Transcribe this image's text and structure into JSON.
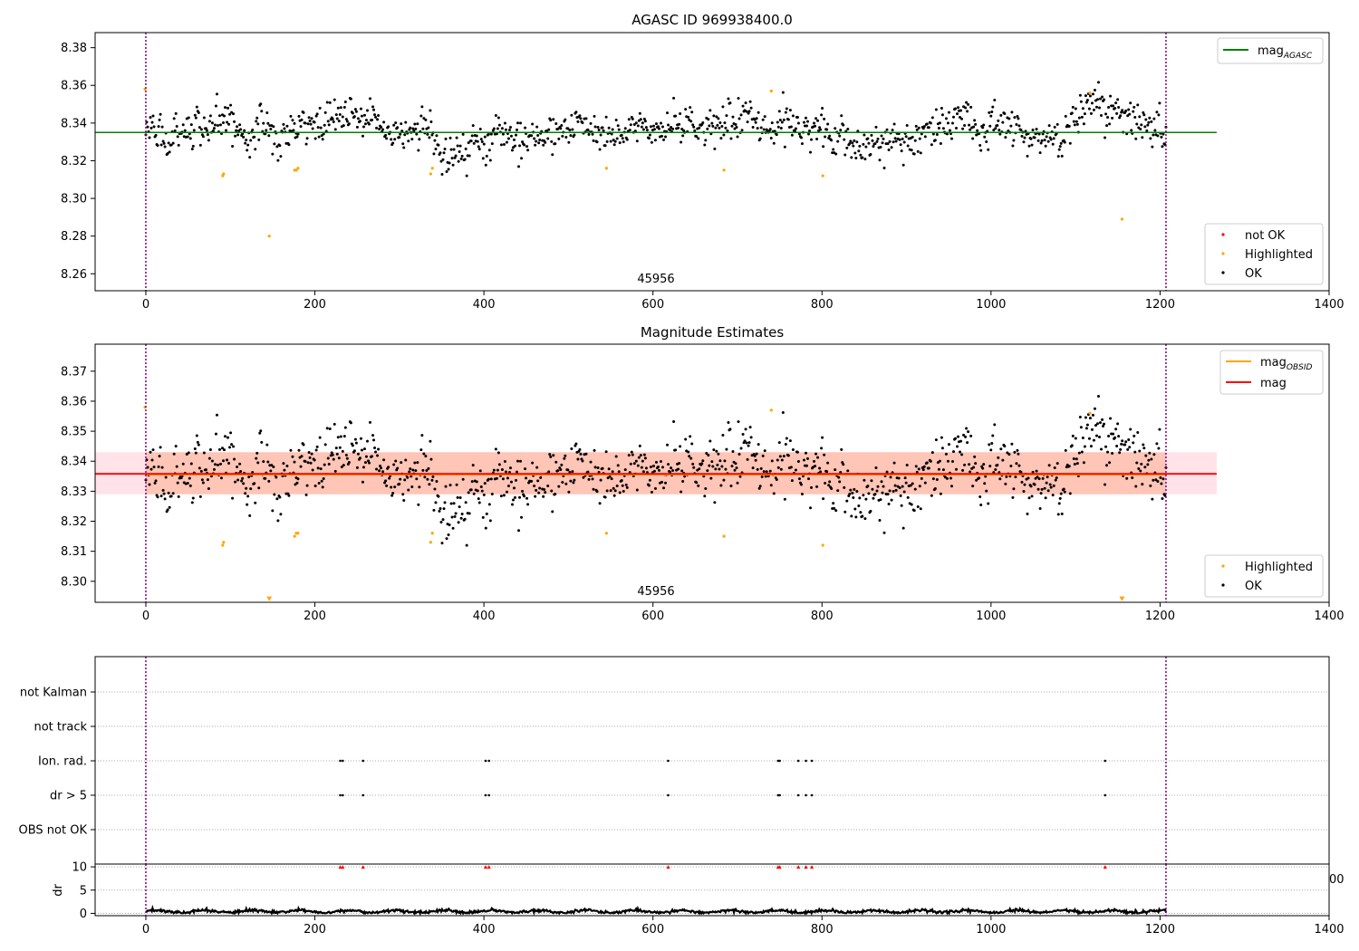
{
  "chart_data": [
    {
      "type": "scatter",
      "title": "AGASC ID 969938400.0",
      "annotation": "45956",
      "xlim": [
        -60,
        1400
      ],
      "ylim": [
        8.251,
        8.388
      ],
      "xticks": [
        "0",
        "200",
        "400",
        "600",
        "800",
        "1000",
        "1200",
        "1400"
      ],
      "yticks": [
        "8.26",
        "8.28",
        "8.30",
        "8.32",
        "8.34",
        "8.36",
        "8.38"
      ],
      "vlines_x": [
        0,
        1207
      ],
      "colors": {
        "ok": "#000000",
        "highlighted": "#ffa500",
        "not_ok": "#ff0000",
        "line": "#008000",
        "vline": "#800080"
      },
      "lines": [
        {
          "name": "mag",
          "subscript": "AGASC",
          "y": 8.335,
          "x": [
            -60,
            1267
          ]
        }
      ],
      "legend_points": [
        "not OK",
        "Highlighted",
        "OK"
      ],
      "series": [
        {
          "name": "Highlighted",
          "x": [
            -1,
            91,
            92,
            146,
            176,
            178,
            180,
            337,
            339,
            545,
            684,
            740,
            801,
            1117,
            1155
          ],
          "y": [
            8.358,
            8.312,
            8.313,
            8.28,
            8.315,
            8.315,
            8.316,
            8.313,
            8.316,
            8.316,
            8.315,
            8.357,
            8.312,
            8.356,
            8.289
          ]
        },
        {
          "name": "OK",
          "generated": "noise",
          "n": 1120,
          "x_range": [
            0,
            1207
          ],
          "center": 8.336,
          "spread": 0.006
        }
      ]
    },
    {
      "type": "scatter",
      "title": "Magnitude Estimates",
      "annotation": "45956",
      "xlim": [
        -60,
        1400
      ],
      "ylim": [
        8.293,
        8.379
      ],
      "xticks": [
        "0",
        "200",
        "400",
        "600",
        "800",
        "1000",
        "1200",
        "1400"
      ],
      "yticks": [
        "8.30",
        "8.31",
        "8.32",
        "8.33",
        "8.34",
        "8.35",
        "8.36",
        "8.37"
      ],
      "vlines_x": [
        0,
        1207
      ],
      "bands": [
        {
          "x": [
            -60,
            1267
          ],
          "y": [
            8.329,
            8.343
          ],
          "color": "#ffc0cb",
          "opacity": 0.45
        },
        {
          "x": [
            0,
            1207
          ],
          "y": [
            8.329,
            8.343
          ],
          "color": "#ffa07a",
          "opacity": 0.45
        }
      ],
      "lines": [
        {
          "name": "mag",
          "subscript": "OBSID",
          "y": 8.3355,
          "x": [
            0,
            1207
          ],
          "color": "#ffa500"
        },
        {
          "name": "mag",
          "subscript": "",
          "y": 8.3358,
          "x": [
            -60,
            1267
          ],
          "color": "#ff0000"
        }
      ],
      "legend_points": [
        "Highlighted",
        "OK"
      ],
      "series": [
        {
          "name": "Highlighted",
          "x": [
            -1,
            91,
            92,
            176,
            178,
            180,
            337,
            339,
            545,
            684,
            740,
            801,
            1117
          ],
          "y": [
            8.358,
            8.312,
            8.313,
            8.315,
            8.316,
            8.316,
            8.313,
            8.316,
            8.316,
            8.315,
            8.357,
            8.312,
            8.356
          ]
        },
        {
          "name": "Highlighted below range",
          "x": [
            146,
            1155
          ],
          "y": [
            8.294,
            8.294
          ]
        },
        {
          "name": "OK",
          "generated": "noise",
          "n": 1120,
          "x_range": [
            0,
            1207
          ],
          "center": 8.336,
          "spread": 0.006
        }
      ]
    },
    {
      "type": "scatter",
      "categories": [
        "not Kalman",
        "not track",
        "Ion. rad.",
        "dr > 5",
        "OBS not OK"
      ],
      "flag_x": [
        230,
        233,
        257,
        402,
        406,
        618,
        748,
        750,
        772,
        781,
        788,
        1135
      ],
      "flags": {
        "Ion. rad.": true,
        "dr > 5": true
      },
      "xlim": [
        -60,
        1400
      ],
      "vlines_x": [
        0,
        1207
      ]
    },
    {
      "type": "line",
      "ylabel": "dr",
      "yticks": [
        "0",
        "5",
        "10"
      ],
      "ylim": [
        -0.5,
        10.6
      ],
      "xlim": [
        -60,
        1400
      ],
      "xticks": [
        "0",
        "200",
        "400",
        "600",
        "800",
        "1000",
        "1200",
        "1400"
      ],
      "overflow_marker_y": 10,
      "overflow_x": [
        230,
        233,
        257,
        402,
        406,
        618,
        748,
        750,
        772,
        781,
        788,
        1135
      ],
      "stray_tick_label": "00",
      "series": [
        {
          "name": "dr",
          "generated": "noise",
          "n": 1210,
          "x_range": [
            0,
            1207
          ],
          "center": 0.4,
          "spread": 0.3
        }
      ],
      "vlines_x": [
        0,
        1207
      ]
    }
  ]
}
